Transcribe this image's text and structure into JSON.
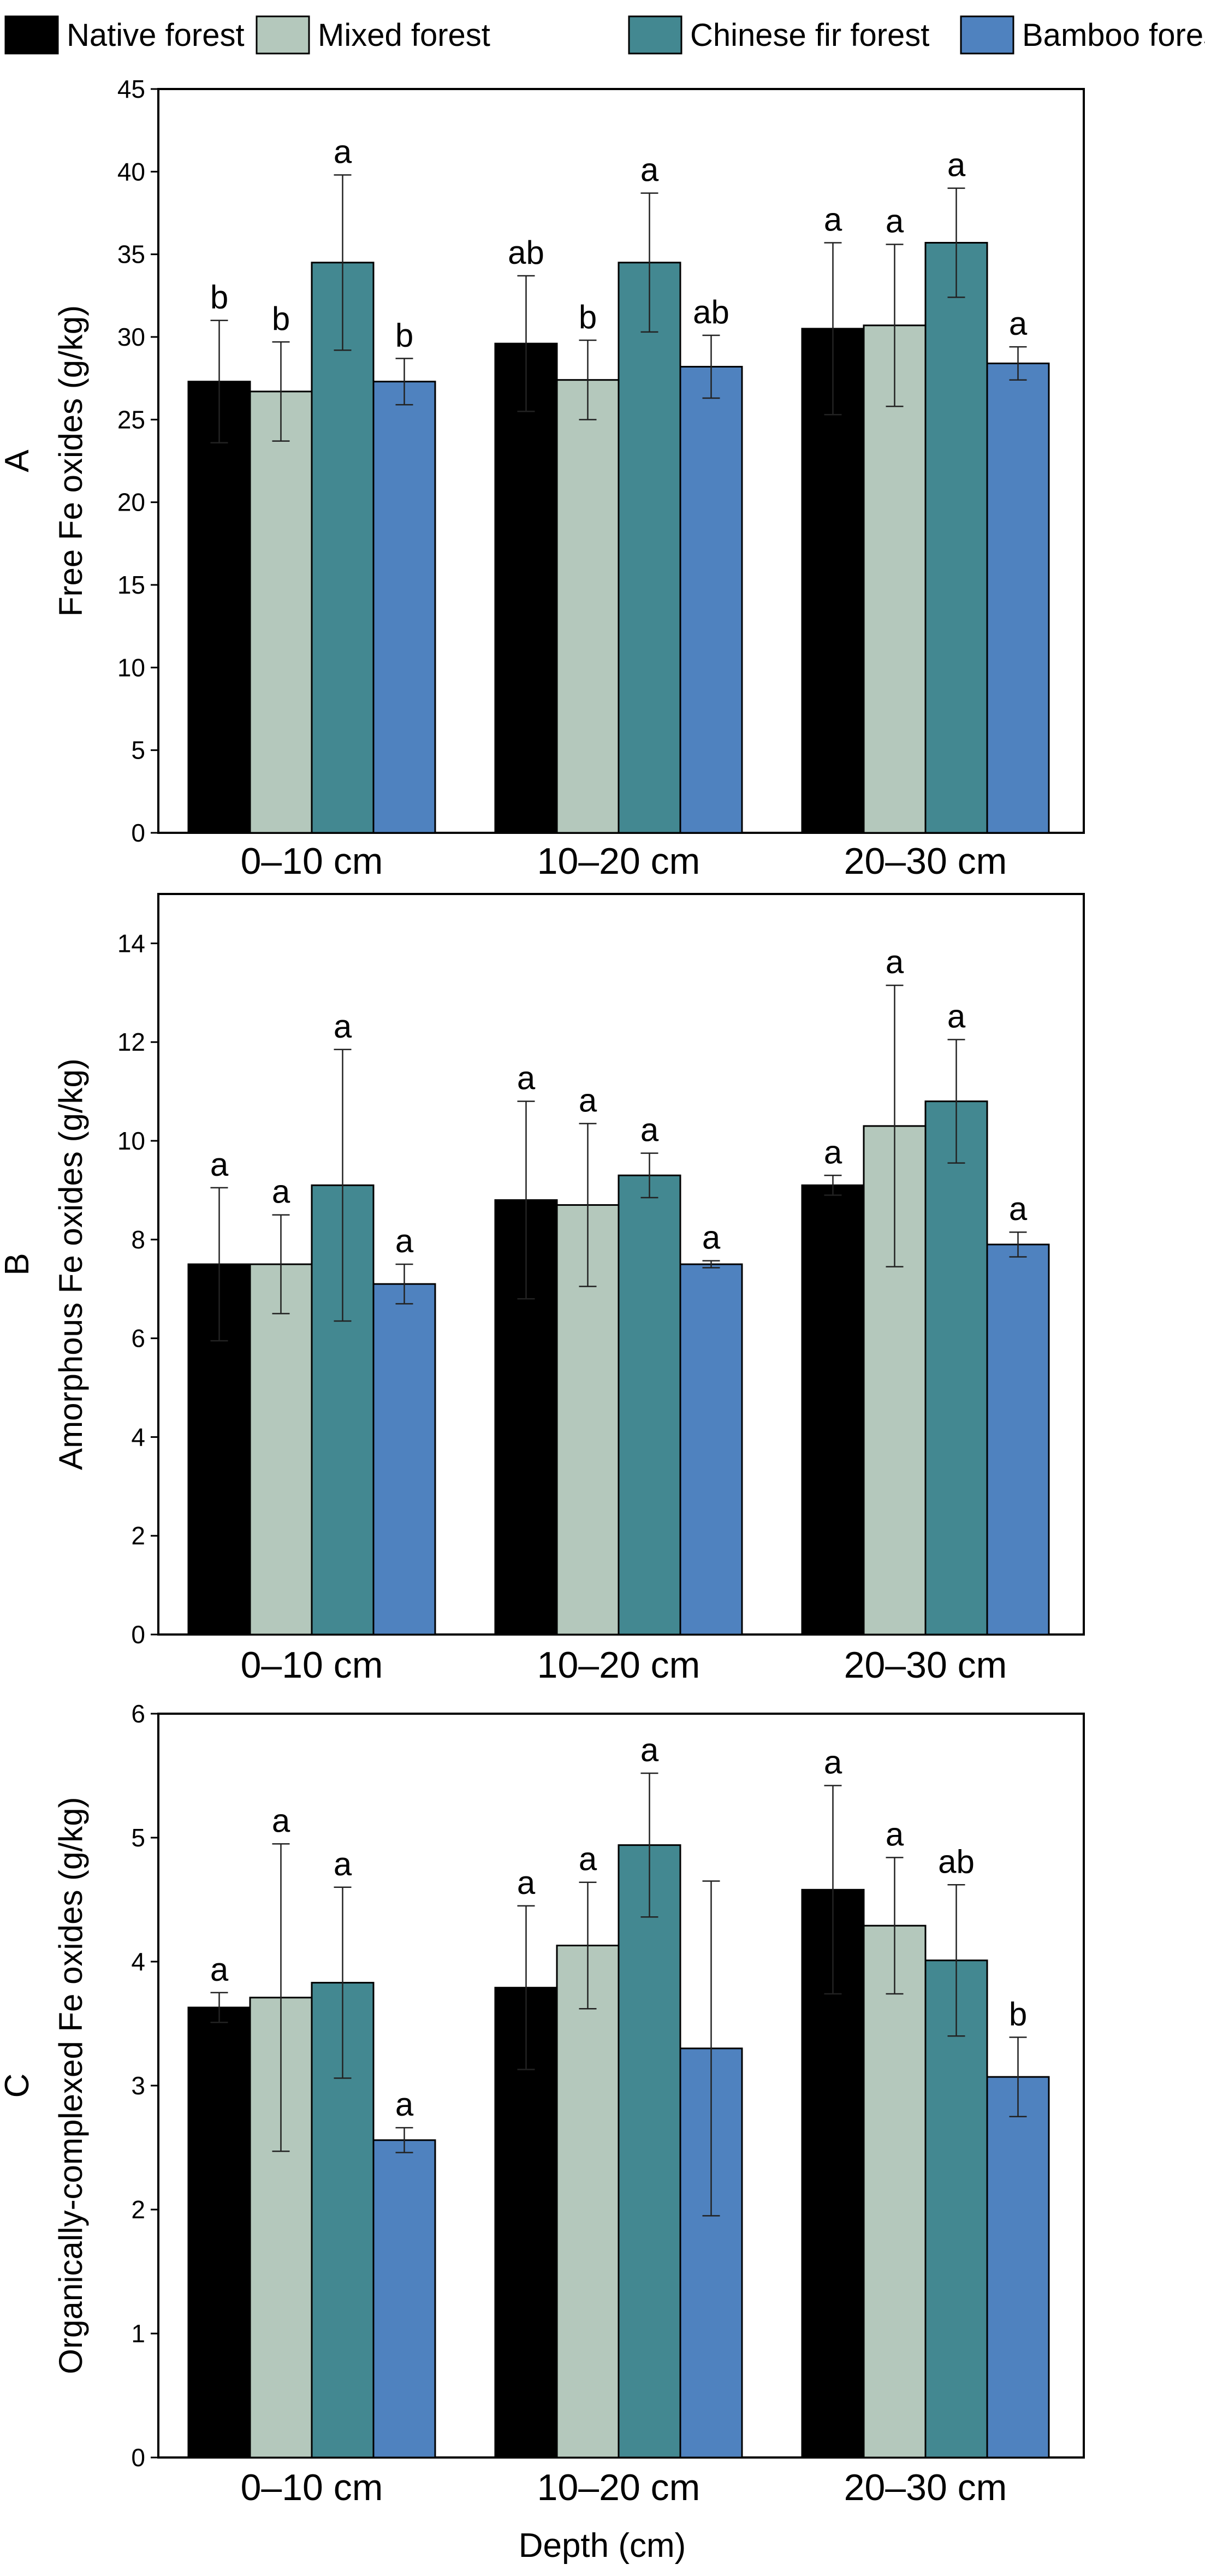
{
  "chart_data": {
    "type": "bar",
    "legend": {
      "position": "top",
      "entries": [
        {
          "name": "Native forest",
          "color": "#000000"
        },
        {
          "name": "Mixed forest",
          "color": "#b4c8bc"
        },
        {
          "name": "Chinese fir forest",
          "color": "#438891"
        },
        {
          "name": "Bamboo forest",
          "color": "#4f82bf"
        }
      ]
    },
    "categories": [
      "0–10 cm",
      "10–20 cm",
      "20–30 cm"
    ],
    "xlabel": "Depth  (cm)",
    "panels": [
      {
        "panel": "A",
        "ylabel": "Free Fe oxides (g/kg)",
        "ylim": [
          0,
          45
        ],
        "yticks": [
          0,
          5,
          10,
          15,
          20,
          25,
          30,
          35,
          40,
          45
        ],
        "series": [
          {
            "name": "Native forest",
            "values": [
              27.3,
              29.6,
              30.5
            ],
            "errors": [
              3.7,
              4.1,
              5.2
            ],
            "letters": [
              "b",
              "ab",
              "a"
            ]
          },
          {
            "name": "Mixed forest",
            "values": [
              26.7,
              27.4,
              30.7
            ],
            "errors": [
              3.0,
              2.4,
              4.9
            ],
            "letters": [
              "b",
              "b",
              "a"
            ]
          },
          {
            "name": "Chinese fir forest",
            "values": [
              34.5,
              34.5,
              35.7
            ],
            "errors": [
              5.3,
              4.2,
              3.3
            ],
            "letters": [
              "a",
              "a",
              "a"
            ]
          },
          {
            "name": "Bamboo forest",
            "values": [
              27.3,
              28.2,
              28.4
            ],
            "errors": [
              1.4,
              1.9,
              1.0
            ],
            "letters": [
              "b",
              "ab",
              "a"
            ]
          }
        ]
      },
      {
        "panel": "B",
        "ylabel": "Amorphous Fe oxides (g/kg)",
        "ylim": [
          0,
          15
        ],
        "yticks": [
          0,
          2,
          4,
          6,
          8,
          10,
          12,
          14
        ],
        "series": [
          {
            "name": "Native forest",
            "values": [
              7.5,
              8.8,
              9.1
            ],
            "errors": [
              1.55,
              2.0,
              0.2
            ],
            "letters": [
              "a",
              "a",
              "a"
            ]
          },
          {
            "name": "Mixed forest",
            "values": [
              7.5,
              8.7,
              10.3
            ],
            "errors": [
              1.0,
              1.65,
              2.85
            ],
            "letters": [
              "a",
              "a",
              "a"
            ]
          },
          {
            "name": "Chinese fir forest",
            "values": [
              9.1,
              9.3,
              10.8
            ],
            "errors": [
              2.75,
              0.45,
              1.25
            ],
            "letters": [
              "a",
              "a",
              "a"
            ]
          },
          {
            "name": "Bamboo forest",
            "values": [
              7.1,
              7.5,
              7.9
            ],
            "errors": [
              0.4,
              0.07,
              0.25
            ],
            "letters": [
              "a",
              "a",
              "a"
            ]
          }
        ]
      },
      {
        "panel": "C",
        "ylabel": "Organically-complexed Fe oxides (g/kg)",
        "ylim": [
          0,
          6
        ],
        "yticks": [
          0,
          1,
          2,
          3,
          4,
          5,
          6
        ],
        "series": [
          {
            "name": "Native forest",
            "values": [
              3.63,
              3.79,
              4.58
            ],
            "errors": [
              0.12,
              0.66,
              0.84
            ],
            "letters": [
              "a",
              "a",
              "a"
            ]
          },
          {
            "name": "Mixed forest",
            "values": [
              3.71,
              4.13,
              4.29
            ],
            "errors": [
              1.24,
              0.51,
              0.55
            ],
            "letters": [
              "a",
              "a",
              "a"
            ]
          },
          {
            "name": "Chinese fir forest",
            "values": [
              3.83,
              4.94,
              4.01
            ],
            "errors": [
              0.77,
              0.58,
              0.61
            ],
            "letters": [
              "a",
              "a",
              "ab"
            ]
          },
          {
            "name": "Bamboo forest",
            "values": [
              2.56,
              3.3,
              3.07
            ],
            "errors": [
              0.1,
              1.35,
              0.32
            ],
            "letters": [
              "a",
              "",
              "b"
            ]
          }
        ]
      }
    ]
  }
}
